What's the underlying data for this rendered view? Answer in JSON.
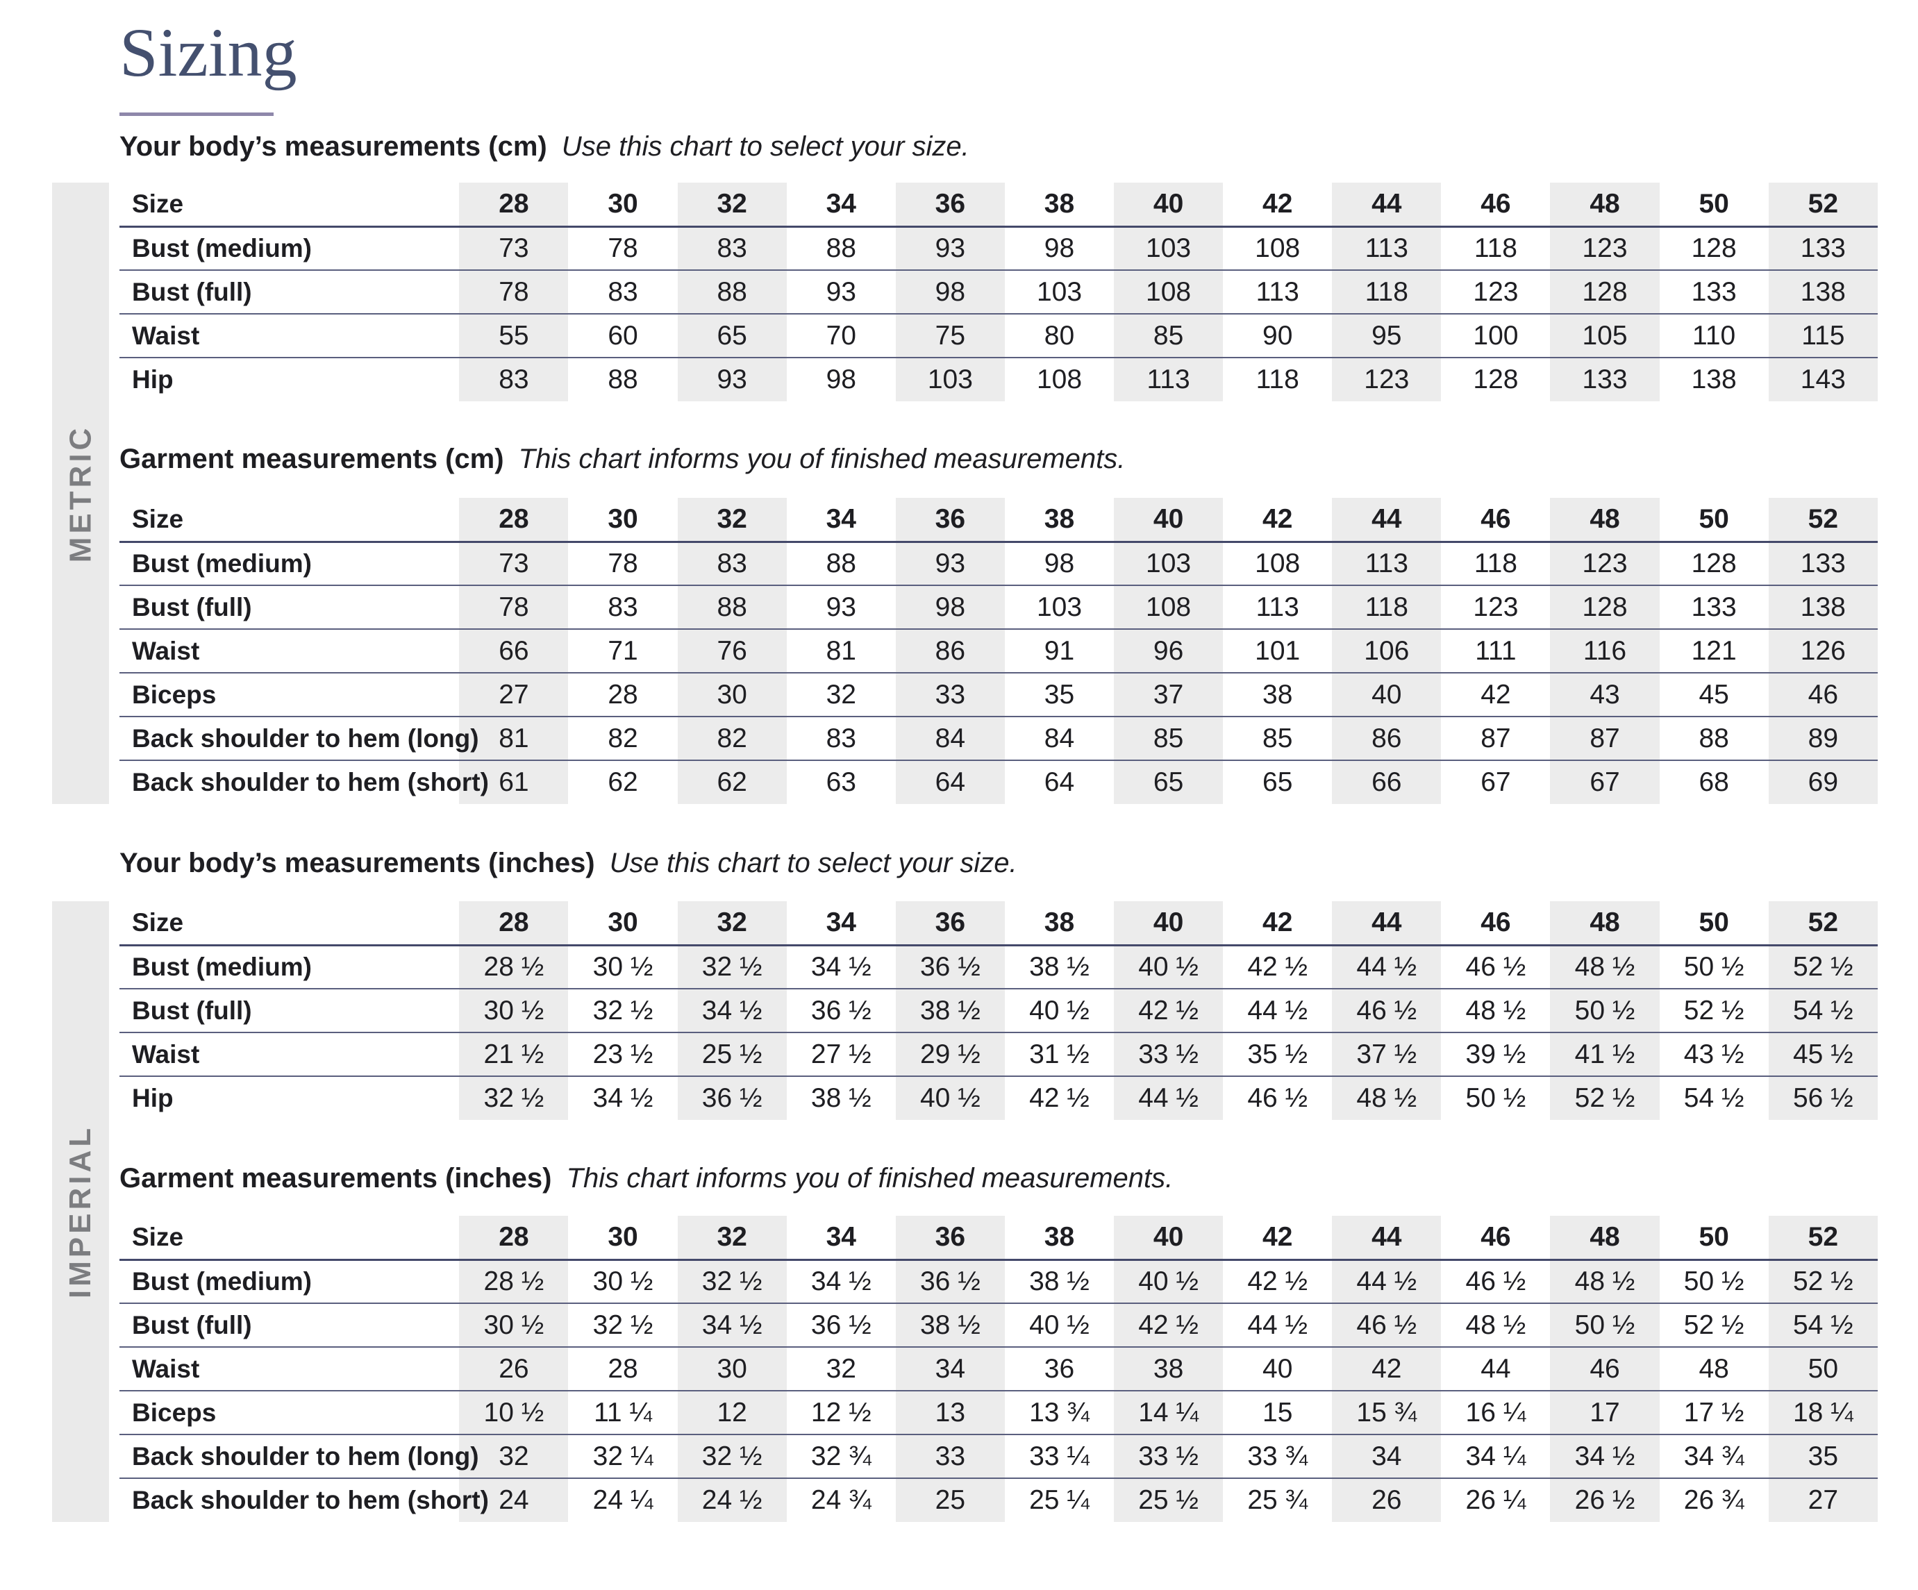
{
  "title": "Sizing",
  "sidebar": {
    "metric_label": "METRIC",
    "imperial_label": "IMPERIAL"
  },
  "sections": [
    {
      "id": "body-cm",
      "heading": "Your body’s measurements (cm)",
      "subheading": "Use this chart to select your size.",
      "size_label": "Size",
      "sizes": [
        "28",
        "30",
        "32",
        "34",
        "36",
        "38",
        "40",
        "42",
        "44",
        "46",
        "48",
        "50",
        "52"
      ],
      "rows": [
        {
          "label": "Bust (medium)",
          "values": [
            "73",
            "78",
            "83",
            "88",
            "93",
            "98",
            "103",
            "108",
            "113",
            "118",
            "123",
            "128",
            "133"
          ]
        },
        {
          "label": "Bust (full)",
          "values": [
            "78",
            "83",
            "88",
            "93",
            "98",
            "103",
            "108",
            "113",
            "118",
            "123",
            "128",
            "133",
            "138"
          ]
        },
        {
          "label": "Waist",
          "values": [
            "55",
            "60",
            "65",
            "70",
            "75",
            "80",
            "85",
            "90",
            "95",
            "100",
            "105",
            "110",
            "115"
          ]
        },
        {
          "label": "Hip",
          "values": [
            "83",
            "88",
            "93",
            "98",
            "103",
            "108",
            "113",
            "118",
            "123",
            "128",
            "133",
            "138",
            "143"
          ]
        }
      ]
    },
    {
      "id": "garment-cm",
      "heading": "Garment measurements (cm)",
      "subheading": "This chart informs you of finished measurements.",
      "size_label": "Size",
      "sizes": [
        "28",
        "30",
        "32",
        "34",
        "36",
        "38",
        "40",
        "42",
        "44",
        "46",
        "48",
        "50",
        "52"
      ],
      "rows": [
        {
          "label": "Bust (medium)",
          "values": [
            "73",
            "78",
            "83",
            "88",
            "93",
            "98",
            "103",
            "108",
            "113",
            "118",
            "123",
            "128",
            "133"
          ]
        },
        {
          "label": "Bust (full)",
          "values": [
            "78",
            "83",
            "88",
            "93",
            "98",
            "103",
            "108",
            "113",
            "118",
            "123",
            "128",
            "133",
            "138"
          ]
        },
        {
          "label": "Waist",
          "values": [
            "66",
            "71",
            "76",
            "81",
            "86",
            "91",
            "96",
            "101",
            "106",
            "111",
            "116",
            "121",
            "126"
          ]
        },
        {
          "label": "Biceps",
          "values": [
            "27",
            "28",
            "30",
            "32",
            "33",
            "35",
            "37",
            "38",
            "40",
            "42",
            "43",
            "45",
            "46"
          ]
        },
        {
          "label": "Back shoulder to hem (long)",
          "values": [
            "81",
            "82",
            "82",
            "83",
            "84",
            "84",
            "85",
            "85",
            "86",
            "87",
            "87",
            "88",
            "89"
          ]
        },
        {
          "label": "Back shoulder to hem (short)",
          "values": [
            "61",
            "62",
            "62",
            "63",
            "64",
            "64",
            "65",
            "65",
            "66",
            "67",
            "67",
            "68",
            "69"
          ]
        }
      ]
    },
    {
      "id": "body-inches",
      "heading": "Your body’s measurements (inches)",
      "subheading": "Use this chart to select your size.",
      "size_label": "Size",
      "sizes": [
        "28",
        "30",
        "32",
        "34",
        "36",
        "38",
        "40",
        "42",
        "44",
        "46",
        "48",
        "50",
        "52"
      ],
      "rows": [
        {
          "label": "Bust (medium)",
          "values": [
            "28 ½",
            "30 ½",
            "32 ½",
            "34 ½",
            "36 ½",
            "38 ½",
            "40 ½",
            "42 ½",
            "44 ½",
            "46 ½",
            "48 ½",
            "50 ½",
            "52 ½"
          ]
        },
        {
          "label": "Bust (full)",
          "values": [
            "30 ½",
            "32 ½",
            "34 ½",
            "36 ½",
            "38 ½",
            "40 ½",
            "42 ½",
            "44 ½",
            "46 ½",
            "48 ½",
            "50 ½",
            "52 ½",
            "54 ½"
          ]
        },
        {
          "label": "Waist",
          "values": [
            "21 ½",
            "23 ½",
            "25 ½",
            "27 ½",
            "29 ½",
            "31 ½",
            "33 ½",
            "35 ½",
            "37 ½",
            "39 ½",
            "41 ½",
            "43 ½",
            "45 ½"
          ]
        },
        {
          "label": "Hip",
          "values": [
            "32 ½",
            "34 ½",
            "36 ½",
            "38 ½",
            "40 ½",
            "42 ½",
            "44 ½",
            "46 ½",
            "48 ½",
            "50 ½",
            "52 ½",
            "54 ½",
            "56 ½"
          ]
        }
      ]
    },
    {
      "id": "garment-inches",
      "heading": "Garment measurements (inches)",
      "subheading": "This chart informs you of finished measurements.",
      "size_label": "Size",
      "sizes": [
        "28",
        "30",
        "32",
        "34",
        "36",
        "38",
        "40",
        "42",
        "44",
        "46",
        "48",
        "50",
        "52"
      ],
      "rows": [
        {
          "label": "Bust (medium)",
          "values": [
            "28 ½",
            "30 ½",
            "32 ½",
            "34 ½",
            "36 ½",
            "38 ½",
            "40 ½",
            "42 ½",
            "44 ½",
            "46 ½",
            "48 ½",
            "50 ½",
            "52 ½"
          ]
        },
        {
          "label": "Bust (full)",
          "values": [
            "30 ½",
            "32 ½",
            "34 ½",
            "36 ½",
            "38 ½",
            "40 ½",
            "42 ½",
            "44 ½",
            "46 ½",
            "48 ½",
            "50 ½",
            "52 ½",
            "54 ½"
          ]
        },
        {
          "label": "Waist",
          "values": [
            "26",
            "28",
            "30",
            "32",
            "34",
            "36",
            "38",
            "40",
            "42",
            "44",
            "46",
            "48",
            "50"
          ]
        },
        {
          "label": "Biceps",
          "values": [
            "10 ½",
            "11 ¼",
            "12",
            "12 ½",
            "13",
            "13 ¾",
            "14 ¼",
            "15",
            "15 ¾",
            "16 ¼",
            "17",
            "17 ½",
            "18 ¼"
          ]
        },
        {
          "label": "Back shoulder to hem (long)",
          "values": [
            "32",
            "32 ¼",
            "32 ½",
            "32 ¾",
            "33",
            "33 ¼",
            "33 ½",
            "33 ¾",
            "34",
            "34 ¼",
            "34 ½",
            "34 ¾",
            "35"
          ]
        },
        {
          "label": "Back shoulder to hem (short)",
          "values": [
            "24",
            "24 ¼",
            "24 ½",
            "24 ¾",
            "25",
            "25 ¼",
            "25 ½",
            "25 ¾",
            "26",
            "26 ¼",
            "26 ½",
            "26 ¾",
            "27"
          ]
        }
      ]
    }
  ],
  "colors": {
    "title_navy": "#44506f",
    "underline_purple": "#8e87aa",
    "rule": "#5a5f7e",
    "header_rule": "#44496a",
    "column_shade": "#ececec",
    "sidebar_bg": "#eaeaea",
    "sidebar_text": "#7c7d80",
    "body_text": "#1e1e22"
  }
}
